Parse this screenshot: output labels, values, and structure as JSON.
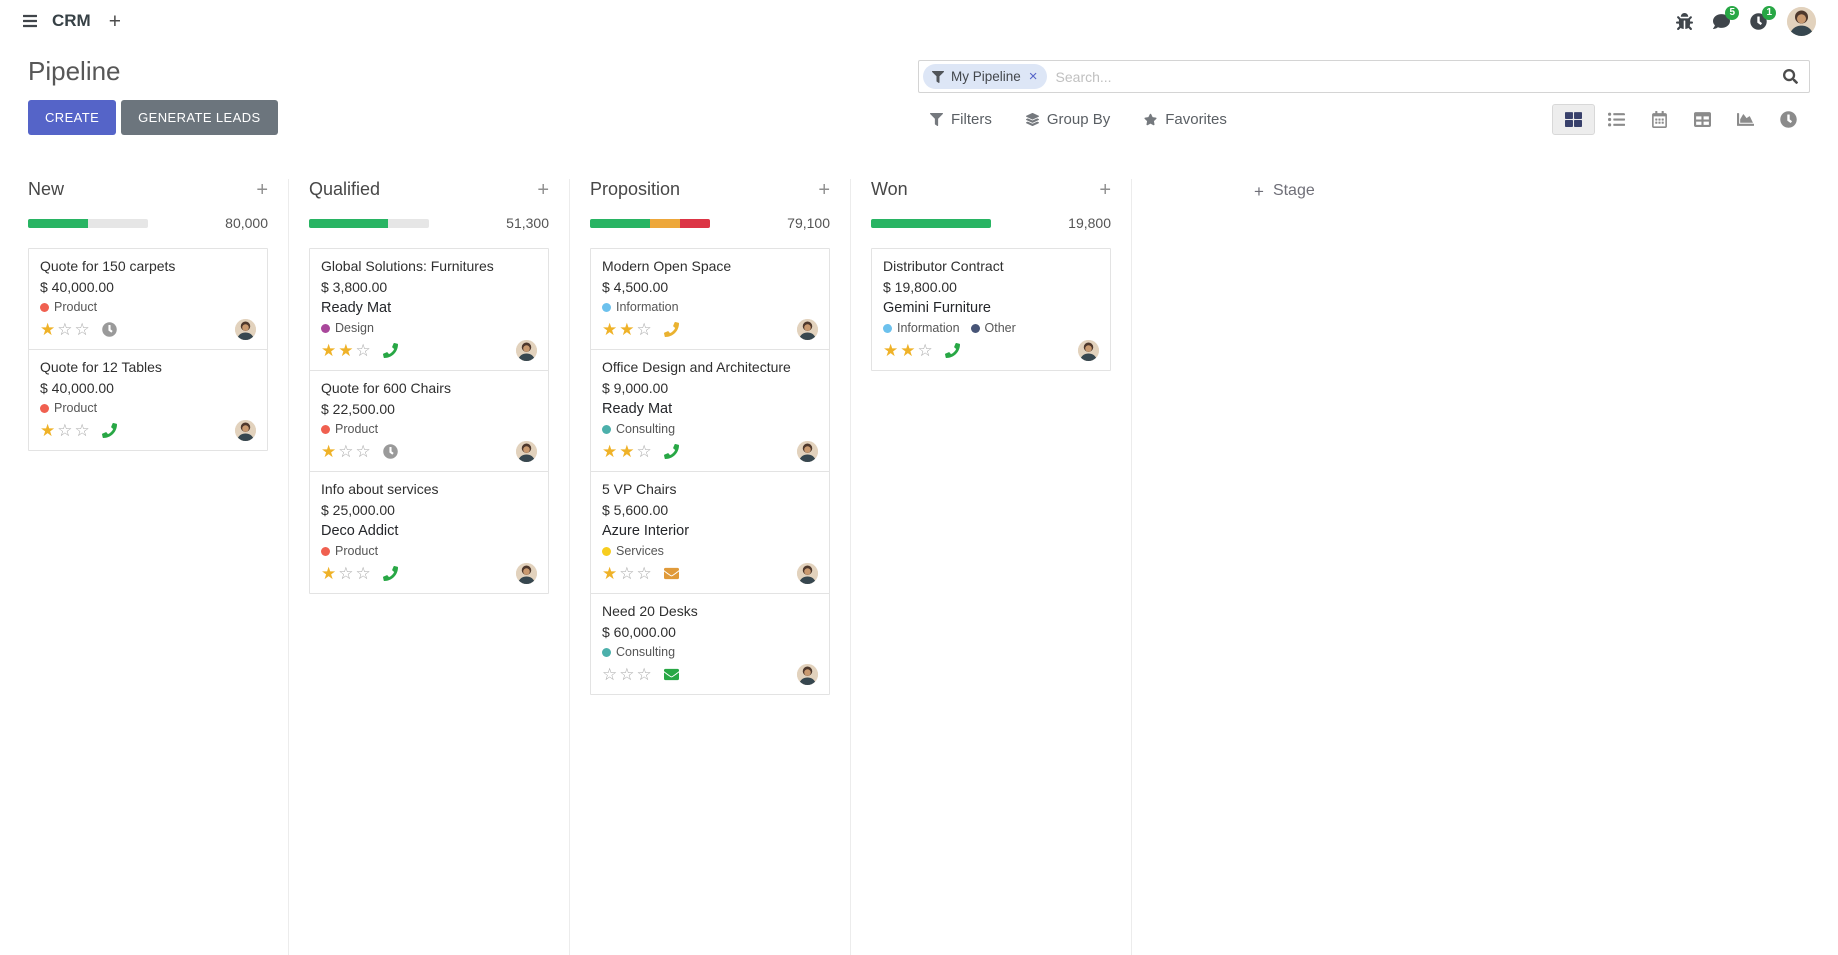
{
  "theme": {
    "primary": "#5564c8",
    "secondary": "#6c757d",
    "success": "#28a745",
    "warning": "#f0ad4e",
    "danger": "#dc3545",
    "star_gold": "#efb228",
    "progress_track": "#e6e6e6"
  },
  "icons": {
    "plus": "+",
    "close": "×"
  },
  "navbar": {
    "app_name": "CRM",
    "messages_badge": "5",
    "activities_badge": "1"
  },
  "control_panel": {
    "title": "Pipeline",
    "create_label": "CREATE",
    "generate_leads_label": "GENERATE LEADS",
    "search": {
      "facet_label": "My Pipeline",
      "placeholder": "Search..."
    },
    "filters_label": "Filters",
    "group_by_label": "Group By",
    "favorites_label": "Favorites"
  },
  "view_switcher": {
    "active_view": "kanban",
    "views": [
      "kanban",
      "list",
      "calendar",
      "pivot",
      "graph",
      "activity"
    ]
  },
  "kanban": {
    "add_stage_label": "Stage",
    "columns": [
      {
        "title": "New",
        "total": "80,000",
        "progress": [
          {
            "status": "planned",
            "color": "#28b463",
            "pct": 50
          }
        ],
        "cards": [
          {
            "title": "Quote for 150 carpets",
            "amount": "$ 40,000.00",
            "partner": null,
            "tags": [
              {
                "label": "Product",
                "color": "#f06050"
              }
            ],
            "stars": 1,
            "activity": {
              "icon": "clock-icon",
              "color": "#9a9a9a"
            }
          },
          {
            "title": "Quote for 12 Tables",
            "amount": "$ 40,000.00",
            "partner": null,
            "tags": [
              {
                "label": "Product",
                "color": "#f06050"
              }
            ],
            "stars": 1,
            "activity": {
              "icon": "phone-icon",
              "color": "#28a745"
            }
          }
        ]
      },
      {
        "title": "Qualified",
        "total": "51,300",
        "progress": [
          {
            "status": "planned",
            "color": "#28b463",
            "pct": 66
          }
        ],
        "cards": [
          {
            "title": "Global Solutions: Furnitures",
            "amount": "$ 3,800.00",
            "partner": "Ready Mat",
            "tags": [
              {
                "label": "Design",
                "color": "#a9479b"
              }
            ],
            "stars": 2,
            "activity": {
              "icon": "phone-icon",
              "color": "#28a745"
            }
          },
          {
            "title": "Quote for 600 Chairs",
            "amount": "$ 22,500.00",
            "partner": null,
            "tags": [
              {
                "label": "Product",
                "color": "#f06050"
              }
            ],
            "stars": 1,
            "activity": {
              "icon": "clock-icon",
              "color": "#9a9a9a"
            }
          },
          {
            "title": "Info about services",
            "amount": "$ 25,000.00",
            "partner": "Deco Addict",
            "tags": [
              {
                "label": "Product",
                "color": "#f06050"
              }
            ],
            "stars": 1,
            "activity": {
              "icon": "phone-icon",
              "color": "#28a745"
            }
          }
        ]
      },
      {
        "title": "Proposition",
        "total": "79,100",
        "progress": [
          {
            "status": "planned",
            "color": "#28b463",
            "pct": 50
          },
          {
            "status": "today",
            "color": "#eda73a",
            "pct": 25
          },
          {
            "status": "overdue",
            "color": "#dc3545",
            "pct": 25
          }
        ],
        "cards": [
          {
            "title": "Modern Open Space",
            "amount": "$ 4,500.00",
            "partner": null,
            "tags": [
              {
                "label": "Information",
                "color": "#6cc1ed"
              }
            ],
            "stars": 2,
            "activity": {
              "icon": "phone-icon",
              "color": "#eab230"
            }
          },
          {
            "title": "Office Design and Architecture",
            "amount": "$ 9,000.00",
            "partner": "Ready Mat",
            "tags": [
              {
                "label": "Consulting",
                "color": "#4cb0ab"
              }
            ],
            "stars": 2,
            "activity": {
              "icon": "phone-icon",
              "color": "#28a745"
            }
          },
          {
            "title": "5 VP Chairs",
            "amount": "$ 5,600.00",
            "partner": "Azure Interior",
            "tags": [
              {
                "label": "Services",
                "color": "#f7cd1f"
              }
            ],
            "stars": 1,
            "activity": {
              "icon": "envelope-icon",
              "color": "#e09a3a"
            }
          },
          {
            "title": "Need 20 Desks",
            "amount": "$ 60,000.00",
            "partner": null,
            "tags": [
              {
                "label": "Consulting",
                "color": "#4cb0ab"
              }
            ],
            "stars": 0,
            "activity": {
              "icon": "envelope-icon",
              "color": "#28a745"
            }
          }
        ]
      },
      {
        "title": "Won",
        "total": "19,800",
        "progress": [
          {
            "status": "planned",
            "color": "#28b463",
            "pct": 100
          }
        ],
        "cards": [
          {
            "title": "Distributor Contract",
            "amount": "$ 19,800.00",
            "partner": "Gemini Furniture",
            "tags": [
              {
                "label": "Information",
                "color": "#6cc1ed"
              },
              {
                "label": "Other",
                "color": "#475577"
              }
            ],
            "stars": 2,
            "activity": {
              "icon": "phone-icon",
              "color": "#28a745"
            }
          }
        ]
      }
    ]
  }
}
